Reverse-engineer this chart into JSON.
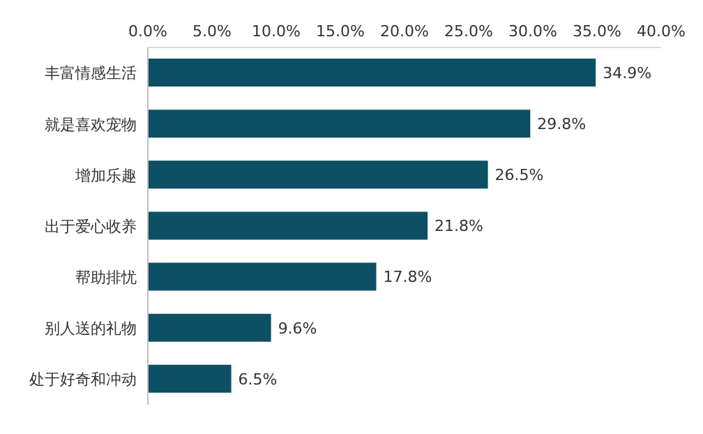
{
  "chart_data": {
    "type": "bar",
    "orientation": "horizontal",
    "categories": [
      "丰富情感生活",
      "就是喜欢宠物",
      "增加乐趣",
      "出于爱心收养",
      "帮助排忧",
      "别人送的礼物",
      "处于好奇和冲动"
    ],
    "values": [
      34.9,
      29.8,
      26.5,
      21.8,
      17.8,
      9.6,
      6.5
    ],
    "value_labels": [
      "34.9%",
      "29.8%",
      "26.5%",
      "21.8%",
      "17.8%",
      "9.6%",
      "6.5%"
    ],
    "color": "#0d4f63",
    "xlim": [
      0,
      40
    ],
    "xticks": [
      {
        "value": 0,
        "label": "0.0%"
      },
      {
        "value": 5,
        "label": "5.0%"
      },
      {
        "value": 10,
        "label": "10.0%"
      },
      {
        "value": 15,
        "label": "15.0%"
      },
      {
        "value": 20,
        "label": "20.0%"
      },
      {
        "value": 25,
        "label": "25.0%"
      },
      {
        "value": 30,
        "label": "30.0%"
      },
      {
        "value": 35,
        "label": "35.0%"
      },
      {
        "value": 40,
        "label": "40.0%"
      }
    ],
    "grid": false,
    "legend": false
  }
}
